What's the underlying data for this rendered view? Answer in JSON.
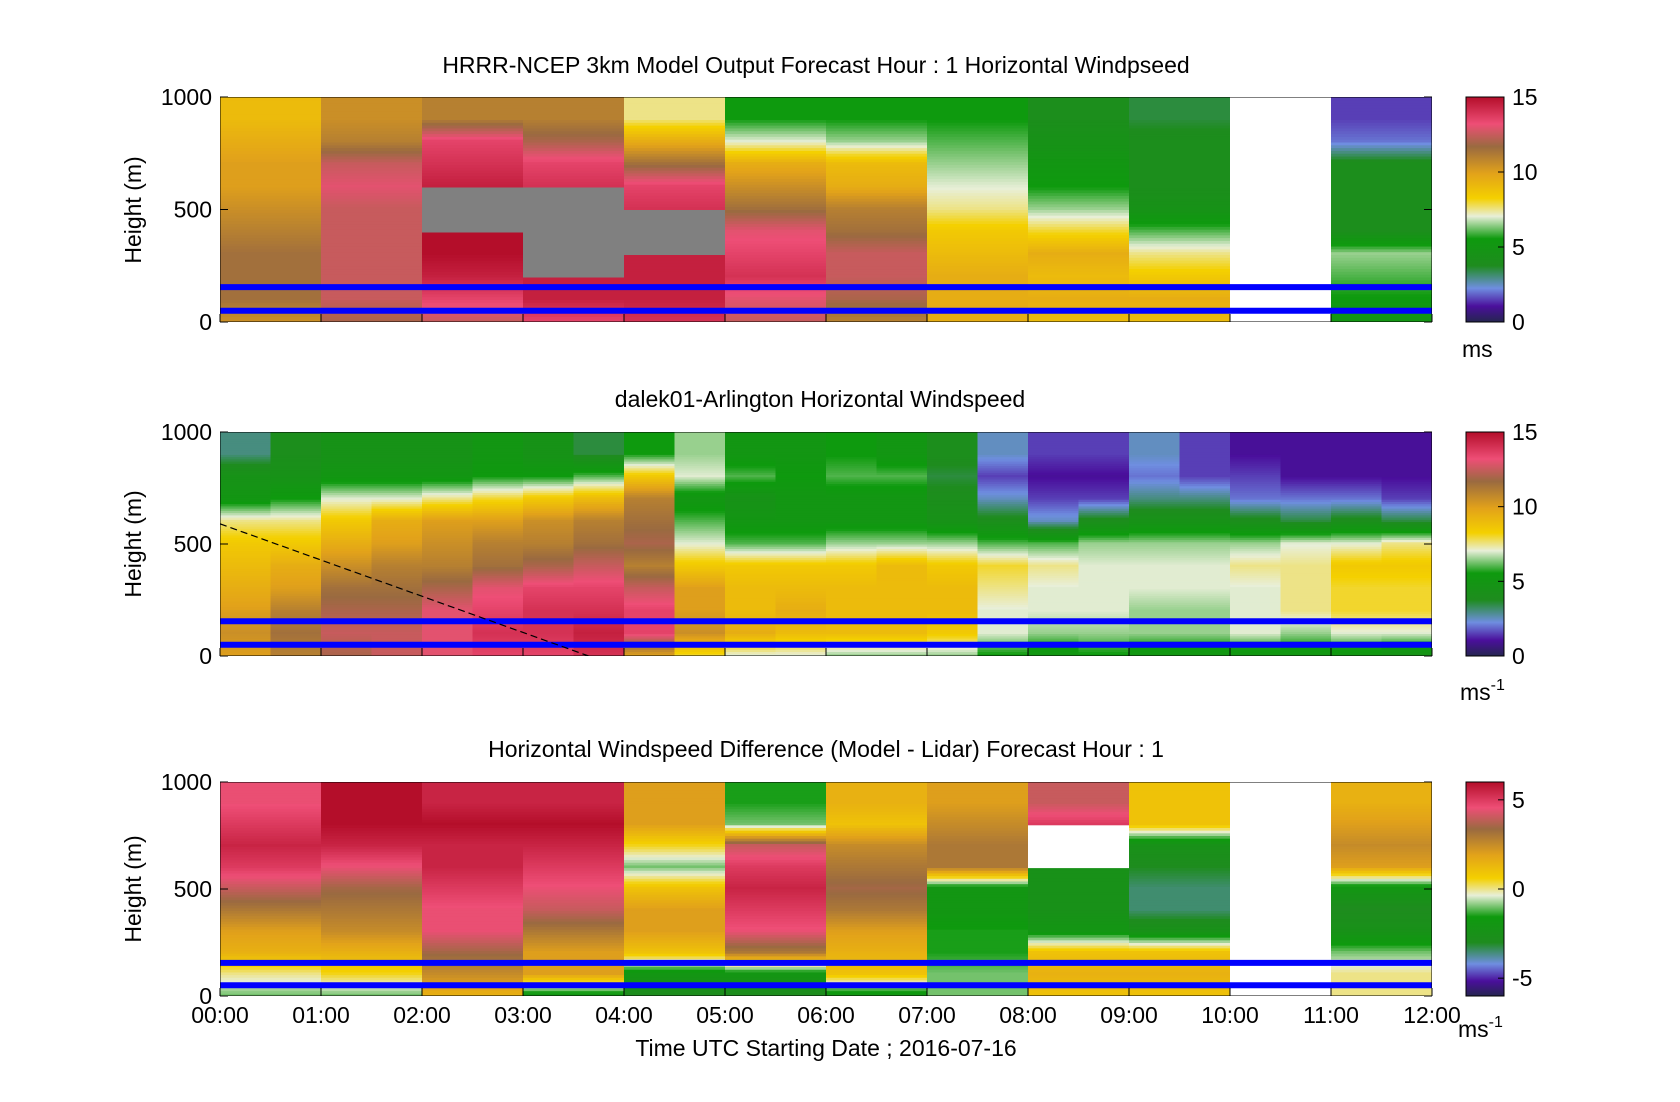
{
  "figure": {
    "xlabel": "Time UTC  Starting Date ; 2016-07-16",
    "x_ticks": [
      "00:00",
      "01:00",
      "02:00",
      "03:00",
      "04:00",
      "05:00",
      "06:00",
      "07:00",
      "08:00",
      "09:00",
      "10:00",
      "11:00",
      "12:00"
    ]
  },
  "chart_data": [
    {
      "type": "heatmap",
      "title": "HRRR-NCEP 3km Model Output   Forecast Hour : 1 Horizontal Windpseed",
      "ylabel": "Height (m)",
      "xlim": [
        0,
        12
      ],
      "ylim": [
        0,
        1000
      ],
      "y_ticks": [
        "0",
        "500",
        "1000"
      ],
      "colorbar": {
        "min": 0,
        "max": 15,
        "ticks": [
          0,
          5,
          10,
          15
        ],
        "unit": "ms",
        "unit_sup": ""
      },
      "reference_heights_m": [
        50,
        155
      ],
      "columns": [
        {
          "hour": 0,
          "values": [
            10.5,
            11.5,
            11.5,
            11.5,
            11,
            10.5,
            10,
            10,
            9.5,
            9
          ]
        },
        {
          "hour": 1,
          "values": [
            12,
            12.5,
            12.5,
            12.5,
            12.5,
            12.5,
            13,
            12.5,
            11,
            10.5
          ]
        },
        {
          "hour": 2,
          "values": [
            12.5,
            13.5,
            14.5,
            15,
            null,
            null,
            14.5,
            14,
            13.5,
            11
          ]
        },
        {
          "hour": 3,
          "values": [
            13.5,
            14.5,
            null,
            null,
            null,
            null,
            14,
            13.5,
            12,
            11
          ]
        },
        {
          "hour": 4,
          "values": [
            14,
            14.5,
            14.5,
            null,
            null,
            14,
            13.5,
            11.5,
            9.5,
            7.5
          ]
        },
        {
          "hour": 5,
          "values": [
            12.5,
            13,
            14,
            13.5,
            13,
            11.5,
            10.5,
            9.5,
            7,
            5.5
          ]
        },
        {
          "hour": 6,
          "values": [
            11,
            12,
            12.5,
            12.5,
            11.5,
            11,
            9.5,
            9,
            6.5,
            5.5
          ]
        },
        {
          "hour": 7,
          "values": [
            9.5,
            9.5,
            9.5,
            9,
            8.5,
            7.5,
            7,
            6.5,
            6,
            5.5
          ]
        },
        {
          "hour": 8,
          "values": [
            9,
            9.5,
            9,
            9.5,
            8,
            6.5,
            5.5,
            5,
            4.5,
            4
          ]
        },
        {
          "hour": 9,
          "values": [
            9,
            9.5,
            8.5,
            7.5,
            6,
            4.5,
            4,
            4,
            4,
            3.5
          ]
        },
        {
          "hour": 10,
          "values": [
            null,
            null,
            null,
            null,
            null,
            null,
            null,
            null,
            null,
            null
          ]
        },
        {
          "hour": 11,
          "values": [
            5,
            5.5,
            6,
            6.5,
            4,
            4,
            4,
            4,
            2,
            1.5
          ]
        }
      ]
    },
    {
      "type": "heatmap",
      "title": "dalek01-Arlington  Horizontal Windspeed",
      "ylabel": "Height (m)",
      "xlim": [
        0,
        12
      ],
      "ylim": [
        0,
        1000
      ],
      "y_ticks": [
        "0",
        "500",
        "1000"
      ],
      "colorbar": {
        "min": 0,
        "max": 15,
        "ticks": [
          0,
          5,
          10,
          15
        ],
        "unit": "ms",
        "unit_sup": "-1"
      },
      "reference_heights_m": [
        50,
        155
      ],
      "annotation_line": {
        "from": [
          0,
          590
        ],
        "to": [
          3.65,
          0
        ]
      },
      "columns": [
        {
          "hour": 0,
          "values": [
            10,
            10.5,
            10,
            9.5,
            9,
            8.5,
            7.5,
            5,
            4.5,
            3
          ]
        },
        {
          "hour": 0.5,
          "values": [
            11,
            11.5,
            11,
            10,
            9.5,
            8.5,
            7.5,
            5.5,
            4.5,
            4
          ]
        },
        {
          "hour": 1,
          "values": [
            12,
            12.5,
            12,
            11.5,
            10.5,
            9.5,
            8.5,
            7,
            5,
            4.5
          ]
        },
        {
          "hour": 1.5,
          "values": [
            12.5,
            12.5,
            12,
            11.5,
            11,
            10,
            9.5,
            7,
            5,
            4.5
          ]
        },
        {
          "hour": 2,
          "values": [
            13,
            13,
            13,
            12,
            11,
            10.5,
            10,
            7.5,
            5,
            4.5
          ]
        },
        {
          "hour": 2.5,
          "values": [
            13.5,
            14,
            13.5,
            13,
            11.5,
            11,
            10,
            8,
            5.5,
            5
          ]
        },
        {
          "hour": 3,
          "values": [
            13.5,
            14,
            14,
            13.5,
            12,
            11,
            10.5,
            8.5,
            5.5,
            4.5
          ]
        },
        {
          "hour": 3.5,
          "values": [
            14,
            14.5,
            14,
            13.5,
            12.5,
            11.5,
            11,
            9,
            6,
            3.5
          ]
        },
        {
          "hour": 4,
          "values": [
            10,
            13.5,
            13.5,
            12.5,
            11,
            12,
            11.5,
            11,
            8.5,
            5.5
          ]
        },
        {
          "hour": 4.5,
          "values": [
            8,
            10.5,
            10,
            10,
            8.5,
            7,
            6,
            5,
            7,
            6.5
          ]
        },
        {
          "hour": 5,
          "values": [
            7,
            9.5,
            9,
            9,
            8.5,
            6,
            5,
            4.5,
            6,
            5
          ]
        },
        {
          "hour": 5.5,
          "values": [
            7,
            9,
            9.5,
            9,
            8.5,
            6,
            5,
            5,
            5.5,
            5
          ]
        },
        {
          "hour": 6,
          "values": [
            6.5,
            9,
            9,
            9,
            8.5,
            6.5,
            5,
            5,
            6,
            5.5
          ]
        },
        {
          "hour": 6.5,
          "values": [
            6.5,
            9,
            9,
            9,
            9,
            6.5,
            5,
            5,
            6,
            5
          ]
        },
        {
          "hour": 7,
          "values": [
            6.5,
            8.5,
            9,
            9,
            8.5,
            6.5,
            4.5,
            4,
            3.5,
            4
          ]
        },
        {
          "hour": 7.5,
          "values": [
            5.5,
            7,
            7,
            7.5,
            8,
            6,
            4,
            2.5,
            1.5,
            2.5
          ]
        },
        {
          "hour": 8,
          "values": [
            5,
            6.5,
            7,
            7,
            7.5,
            6,
            2.5,
            1.5,
            1,
            1.5
          ]
        },
        {
          "hour": 8.5,
          "values": [
            5.5,
            6.5,
            7,
            7,
            7,
            6.5,
            4,
            1.5,
            1,
            1.5
          ]
        },
        {
          "hour": 9,
          "values": [
            5,
            6.5,
            6.5,
            7,
            7,
            6.5,
            4.5,
            3,
            2,
            2.5
          ]
        },
        {
          "hour": 9.5,
          "values": [
            5,
            6.5,
            6.5,
            7,
            7,
            6.5,
            4.5,
            3,
            1.5,
            1.5
          ]
        },
        {
          "hour": 10,
          "values": [
            5,
            7,
            7,
            7,
            7.5,
            6.5,
            4,
            2,
            1.5,
            1
          ]
        },
        {
          "hour": 10.5,
          "values": [
            5,
            6.5,
            7.5,
            7.5,
            7.5,
            7,
            3.5,
            2,
            1,
            1
          ]
        },
        {
          "hour": 11,
          "values": [
            5,
            7,
            8,
            8,
            8.5,
            7,
            4,
            2,
            1,
            1
          ]
        },
        {
          "hour": 11.5,
          "values": [
            4.5,
            7,
            8,
            8,
            8.5,
            7.5,
            3.5,
            1.5,
            1,
            1
          ]
        }
      ]
    },
    {
      "type": "heatmap",
      "title": "Horizontal Windspeed Difference (Model - Lidar) Forecast Hour : 1",
      "ylabel": "Height (m)",
      "xlim": [
        0,
        12
      ],
      "ylim": [
        0,
        1000
      ],
      "y_ticks": [
        "0",
        "500",
        "1000"
      ],
      "colorbar": {
        "min": -6,
        "max": 6,
        "ticks": [
          -5,
          0,
          5
        ],
        "unit": "ms",
        "unit_sup": "-1"
      },
      "reference_heights_m": [
        50,
        155
      ],
      "columns": [
        {
          "hour": 0,
          "values": [
            -1,
            0,
            1.5,
            2,
            3,
            4,
            5,
            5.5,
            5,
            4.5
          ]
        },
        {
          "hour": 1,
          "values": [
            -1,
            0.5,
            1.5,
            2.5,
            3,
            3.5,
            4.5,
            5.5,
            6,
            6
          ]
        },
        {
          "hour": 2,
          "values": [
            1.5,
            2.5,
            3.5,
            4.5,
            4.5,
            5,
            5.5,
            5.5,
            6,
            5.5
          ]
        },
        {
          "hour": 3,
          "values": [
            -2,
            2,
            2,
            3,
            4,
            4.5,
            5,
            5.5,
            6,
            5.5
          ]
        },
        {
          "hour": 4,
          "values": [
            -3,
            -2,
            1,
            2,
            2,
            1,
            -1,
            0.5,
            2,
            2
          ]
        },
        {
          "hour": 5,
          "values": [
            -3,
            -2,
            3,
            4.5,
            5,
            5.5,
            5,
            4,
            -1,
            -1.5
          ]
        },
        {
          "hour": 6,
          "values": [
            -2,
            1,
            1.5,
            2,
            3,
            3.5,
            3,
            2.5,
            1,
            1.5
          ]
        },
        {
          "hour": 7,
          "values": [
            -1,
            -1,
            -1.5,
            -1.5,
            -2,
            -2,
            3,
            3,
            2.5,
            2
          ]
        },
        {
          "hour": 8,
          "values": [
            1,
            1.5,
            1,
            -2,
            -2.5,
            -2.5,
            null,
            null,
            5,
            4
          ]
        },
        {
          "hour": 9,
          "values": [
            1,
            1.5,
            1,
            -2.5,
            -3.5,
            -3.5,
            -3,
            -2.5,
            1,
            1
          ]
        },
        {
          "hour": 10,
          "values": [
            null,
            null,
            null,
            null,
            null,
            null,
            null,
            null,
            null,
            null
          ]
        },
        {
          "hour": 11,
          "values": [
            0,
            0,
            -1,
            -2.5,
            -3,
            -2,
            2,
            2.5,
            2,
            1.5
          ]
        }
      ]
    }
  ]
}
